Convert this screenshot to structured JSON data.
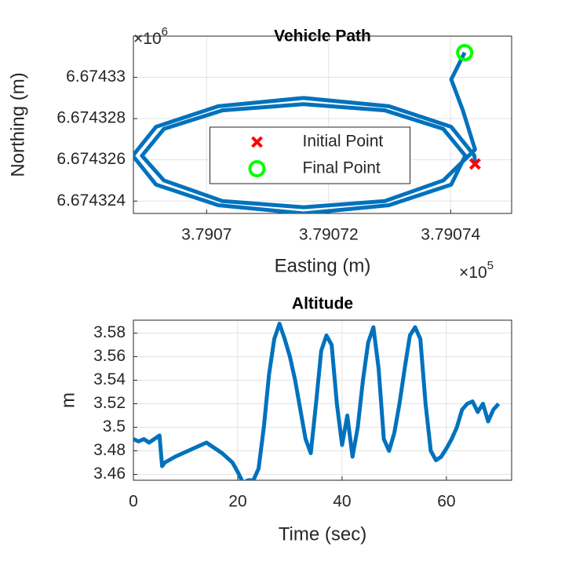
{
  "chart_data": [
    {
      "type": "line",
      "title": "Vehicle Path",
      "xlabel": "Easting (m)",
      "ylabel": "Northing (m)",
      "x_multiplier": {
        "base": "×10",
        "power": "5"
      },
      "y_multiplier": {
        "base": "×10",
        "power": "6"
      },
      "xlim": [
        3.790688,
        3.79075
      ],
      "ylim": [
        6.6743234,
        6.674332
      ],
      "xticks": [
        3.7907,
        3.79072,
        3.79074
      ],
      "yticks": [
        6.674324,
        6.674326,
        6.674328,
        6.67433
      ],
      "grid": true,
      "legend_position": "center",
      "series": [
        {
          "color": "#0072bd",
          "marker": "line",
          "x": [
            3.790744,
            3.7907439,
            3.7907401,
            3.7907299,
            3.7907159,
            3.7907019,
            3.7906917,
            3.7906879,
            3.7906917,
            3.7907019,
            3.7907159,
            3.7907299,
            3.7907401,
            3.7907424,
            3.7907388,
            3.7907292,
            3.7907159,
            3.7907026,
            3.790693,
            3.7906894,
            3.790693,
            3.7907026,
            3.7907159,
            3.7907292,
            3.7907388,
            3.790744,
            3.790742,
            3.7907401,
            3.7907423
          ],
          "y": [
            6.6743258,
            6.6743262,
            6.6743276,
            6.6743286,
            6.674329,
            6.6743286,
            6.6743276,
            6.6743262,
            6.6743248,
            6.6743238,
            6.6743234,
            6.6743238,
            6.6743248,
            6.6743262,
            6.6743275,
            6.6743284,
            6.6743287,
            6.6743284,
            6.6743275,
            6.6743262,
            6.674325,
            6.674324,
            6.6743237,
            6.674324,
            6.674325,
            6.6743265,
            6.6743284,
            6.6743299,
            6.6743312
          ]
        },
        {
          "name": "Initial Point",
          "color": "#ff0000",
          "marker": "x",
          "x": [
            3.790744
          ],
          "y": [
            6.6743258
          ]
        },
        {
          "name": "Final Point",
          "color": "#00ff00",
          "marker": "o",
          "x": [
            3.7907423
          ],
          "y": [
            6.6743312
          ]
        }
      ]
    },
    {
      "type": "line",
      "title": "Altitude",
      "xlabel": "Time (sec)",
      "ylabel": "m",
      "xlim": [
        0,
        72.5
      ],
      "ylim": [
        3.455,
        3.591
      ],
      "xticks": [
        0,
        20,
        40,
        60
      ],
      "yticks": [
        3.46,
        3.48,
        3.5,
        3.52,
        3.54,
        3.56,
        3.58
      ],
      "grid": true,
      "x": [
        0,
        1,
        2,
        3,
        4,
        5,
        5.5,
        6,
        8,
        10,
        12,
        14,
        15,
        17,
        19,
        20,
        21,
        22,
        23,
        24,
        25,
        26,
        27,
        28,
        29,
        30,
        31,
        32,
        33,
        34,
        35,
        36,
        37,
        38,
        39,
        40,
        41,
        42,
        43,
        44,
        45,
        46,
        47,
        48,
        49,
        50,
        51,
        52,
        53,
        54,
        55,
        56,
        57,
        58,
        59,
        60,
        61,
        62,
        63,
        64,
        65,
        66,
        67,
        68,
        69,
        70
      ],
      "series": [
        {
          "color": "#0072bd",
          "marker": "line",
          "values": [
            3.49,
            3.488,
            3.49,
            3.487,
            3.49,
            3.493,
            3.467,
            3.47,
            3.475,
            3.479,
            3.483,
            3.487,
            3.484,
            3.478,
            3.47,
            3.462,
            3.453,
            3.455,
            3.455,
            3.465,
            3.5,
            3.545,
            3.575,
            3.588,
            3.575,
            3.56,
            3.54,
            3.515,
            3.49,
            3.478,
            3.52,
            3.565,
            3.578,
            3.57,
            3.52,
            3.485,
            3.51,
            3.475,
            3.5,
            3.54,
            3.572,
            3.585,
            3.55,
            3.49,
            3.48,
            3.495,
            3.52,
            3.55,
            3.578,
            3.585,
            3.575,
            3.52,
            3.48,
            3.472,
            3.475,
            3.482,
            3.49,
            3.5,
            3.515,
            3.52,
            3.522,
            3.513,
            3.52,
            3.505,
            3.515,
            3.52
          ]
        }
      ]
    }
  ]
}
